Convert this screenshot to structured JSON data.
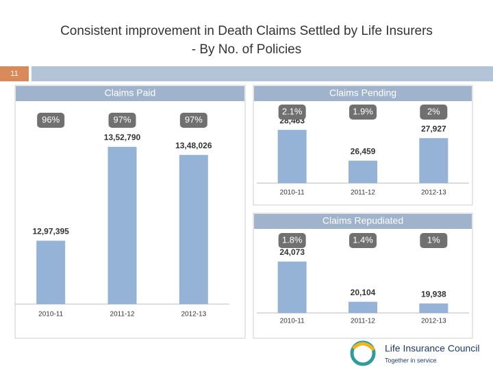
{
  "slide": {
    "title_line1": "Consistent improvement in Death Claims Settled by Life Insurers",
    "title_line2": "- By No. of Policies",
    "page_number": "11",
    "logo_name": "Life Insurance Council",
    "logo_tagline": "Together in service"
  },
  "chart_data": [
    {
      "type": "bar",
      "title": "Claims Paid",
      "categories": [
        "2010-11",
        "2011-12",
        "2012-13"
      ],
      "values": [
        1297395,
        1352790,
        1348026
      ],
      "value_labels": [
        "12,97,395",
        "13,52,790",
        "13,48,026"
      ],
      "annotations": [
        "96%",
        "97%",
        "97%"
      ],
      "color": "#95b3d7",
      "ylim": [
        1260000,
        1360000
      ]
    },
    {
      "type": "bar",
      "title": "Claims Pending",
      "categories": [
        "2010-11",
        "2011-12",
        "2012-13"
      ],
      "values": [
        28463,
        26459,
        27927
      ],
      "value_labels": [
        "28,463",
        "26,459",
        "27,927"
      ],
      "annotations": [
        "2.1%",
        "1.9%",
        "2%"
      ],
      "color": "#95b3d7",
      "ylim": [
        25000,
        29000
      ]
    },
    {
      "type": "bar",
      "title": "Claims Repudiated",
      "categories": [
        "2010-11",
        "2011-12",
        "2012-13"
      ],
      "values": [
        24073,
        20104,
        19938
      ],
      "value_labels": [
        "24,073",
        "20,104",
        "19,938"
      ],
      "annotations": [
        "1.8%",
        "1.4%",
        "1%"
      ],
      "color": "#95b3d7",
      "ylim": [
        19000,
        25000
      ]
    }
  ]
}
